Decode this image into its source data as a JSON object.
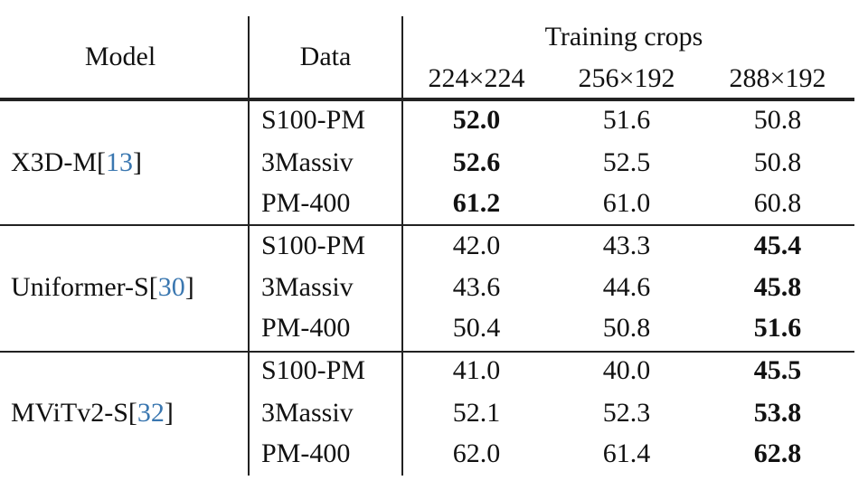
{
  "header": {
    "model": "Model",
    "data": "Data",
    "training_crops": "Training crops",
    "crops": [
      "224×224",
      "256×192",
      "288×192"
    ]
  },
  "groups": [
    {
      "model": "X3D-M[",
      "ref": "13",
      "close": "]",
      "best_column": 0,
      "rows": [
        {
          "data": "S100-PM",
          "values": [
            "52.0",
            "51.6",
            "50.8"
          ]
        },
        {
          "data": "3Massiv",
          "values": [
            "52.6",
            "52.5",
            "50.8"
          ]
        },
        {
          "data": "PM-400",
          "values": [
            "61.2",
            "61.0",
            "60.8"
          ]
        }
      ]
    },
    {
      "model": "Uniformer-S[",
      "ref": "30",
      "close": "]",
      "best_column": 2,
      "rows": [
        {
          "data": "S100-PM",
          "values": [
            "42.0",
            "43.3",
            "45.4"
          ]
        },
        {
          "data": "3Massiv",
          "values": [
            "43.6",
            "44.6",
            "45.8"
          ]
        },
        {
          "data": "PM-400",
          "values": [
            "50.4",
            "50.8",
            "51.6"
          ]
        }
      ]
    },
    {
      "model": "MViTv2-S[",
      "ref": "32",
      "close": "]",
      "best_column": 2,
      "rows": [
        {
          "data": "S100-PM",
          "values": [
            "41.0",
            "40.0",
            "45.5"
          ]
        },
        {
          "data": "3Massiv",
          "values": [
            "52.1",
            "52.3",
            "53.8"
          ]
        },
        {
          "data": "PM-400",
          "values": [
            "62.0",
            "61.4",
            "62.8"
          ]
        }
      ]
    }
  ]
}
